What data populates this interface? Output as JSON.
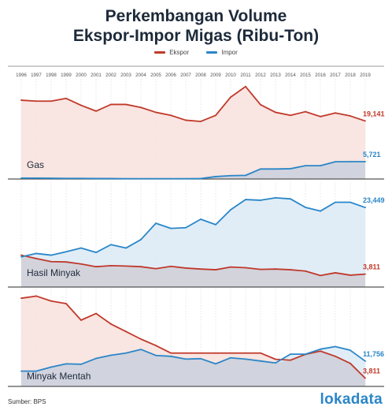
{
  "title_lines": [
    "Perkembangan Volume",
    "Ekspor-Impor Migas (Ribu-Ton)"
  ],
  "legend": {
    "ekspor": "Ekspor",
    "impor": "Impor"
  },
  "colors": {
    "ekspor": "#c0392b",
    "impor": "#2a86c8",
    "ekspor_fill": "#f8e0dc",
    "impor_fill": "#daeaf6",
    "overlap_fill": "#cfd0dc"
  },
  "source": "Sumber: BPS",
  "logo": "lokadata",
  "chart_data": [
    {
      "type": "area",
      "panel": "Gas",
      "x": [
        "1996",
        "1997",
        "1998",
        "1999",
        "2000",
        "2001",
        "2002",
        "2003",
        "2004",
        "2005",
        "2006",
        "2007",
        "2008",
        "2009",
        "2010",
        "2011",
        "2012",
        "2013",
        "2014",
        "2015",
        "2016",
        "2017",
        "2018",
        "2019"
      ],
      "ylim": [
        0,
        32000
      ],
      "series": [
        {
          "name": "Ekspor",
          "values": [
            26000,
            25700,
            25700,
            26600,
            24300,
            22400,
            24600,
            24600,
            23600,
            22000,
            21000,
            19400,
            19000,
            21000,
            27000,
            30500,
            24500,
            22000,
            21000,
            22200,
            20600,
            21800,
            20800,
            19141
          ],
          "end_label": "19,141"
        },
        {
          "name": "Impor",
          "values": [
            300,
            300,
            250,
            200,
            200,
            150,
            150,
            100,
            100,
            100,
            100,
            100,
            150,
            800,
            1100,
            1200,
            3300,
            3300,
            3400,
            4400,
            4400,
            5700,
            5721,
            5721
          ],
          "end_label": "5,721"
        }
      ]
    },
    {
      "type": "area",
      "panel": "Hasil Minyak",
      "x": [
        "1996",
        "1997",
        "1998",
        "1999",
        "2000",
        "2001",
        "2002",
        "2003",
        "2004",
        "2005",
        "2006",
        "2007",
        "2008",
        "2009",
        "2010",
        "2011",
        "2012",
        "2013",
        "2014",
        "2015",
        "2016",
        "2017",
        "2018",
        "2019"
      ],
      "ylim": [
        0,
        30000
      ],
      "series": [
        {
          "name": "Ekspor",
          "values": [
            9400,
            8400,
            7500,
            7400,
            6800,
            6000,
            6300,
            6200,
            6000,
            5400,
            6100,
            5600,
            5300,
            5100,
            5900,
            5700,
            5200,
            5300,
            5100,
            4700,
            3400,
            4200,
            3500,
            3811
          ],
          "end_label": "3,811"
        },
        {
          "name": "Impor",
          "values": [
            8900,
            9900,
            9400,
            10400,
            11500,
            10200,
            12500,
            11500,
            14000,
            18800,
            17300,
            17500,
            20000,
            18400,
            22800,
            25800,
            25600,
            26300,
            26000,
            23500,
            22400,
            25000,
            25000,
            23449
          ],
          "end_label": "23,449"
        }
      ]
    },
    {
      "type": "area",
      "panel": "Minyak Mentah",
      "x": [
        "1996",
        "1997",
        "1998",
        "1999",
        "2000",
        "2001",
        "2002",
        "2003",
        "2004",
        "2005",
        "2006",
        "2007",
        "2008",
        "2009",
        "2010",
        "2011",
        "2012",
        "2013",
        "2014",
        "2015",
        "2016",
        "2017",
        "2018",
        "2019"
      ],
      "ylim": [
        0,
        44000
      ],
      "series": [
        {
          "name": "Ekspor",
          "values": [
            41000,
            42000,
            39700,
            38500,
            30800,
            33900,
            29000,
            25500,
            22000,
            19000,
            15500,
            15500,
            15500,
            15500,
            15500,
            15500,
            15500,
            12600,
            12200,
            14900,
            16400,
            14000,
            10700,
            3811
          ],
          "end_label": "3,811"
        },
        {
          "name": "Impor",
          "values": [
            7100,
            7100,
            9000,
            10500,
            10300,
            13000,
            14500,
            15500,
            17200,
            14400,
            14000,
            12700,
            12900,
            10500,
            13300,
            12700,
            11800,
            10900,
            15000,
            15000,
            17300,
            18500,
            16800,
            11756
          ],
          "end_label": "11,756"
        }
      ]
    }
  ]
}
